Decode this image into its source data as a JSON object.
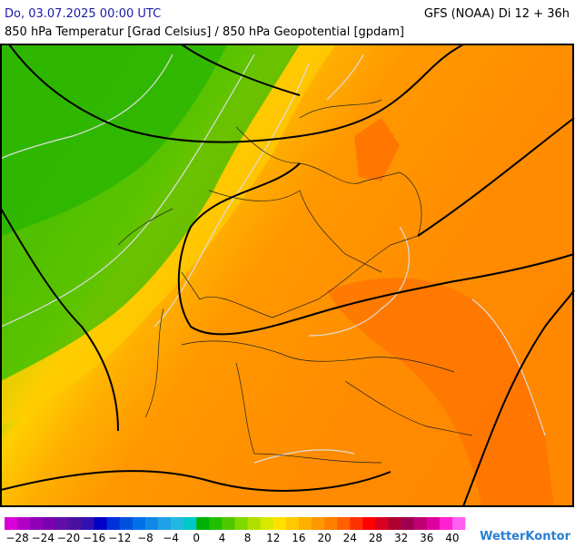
{
  "header": {
    "left": "Do, 03.07.2025 00:00 UTC",
    "right": "GFS (NOAA) Di 12 + 36h",
    "subtitle": "850 hPa Temperatur [Grad Celsius] / 850 hPa Geopotential [gpdam]"
  },
  "colorbar": {
    "range": [
      -30,
      42
    ],
    "colors": [
      "#d800d8",
      "#b000c8",
      "#9000b8",
      "#7a00b0",
      "#6010a8",
      "#4a10a0",
      "#3010b0",
      "#0000c8",
      "#0030d8",
      "#0050e0",
      "#0070e8",
      "#1088e8",
      "#20a0e8",
      "#20b8e0",
      "#00c8c8",
      "#00b000",
      "#20c000",
      "#50c800",
      "#80d800",
      "#b0e000",
      "#d8e800",
      "#ffe000",
      "#ffc800",
      "#ffb000",
      "#ff9800",
      "#ff8000",
      "#ff6000",
      "#ff3000",
      "#ff0000",
      "#d80020",
      "#b00030",
      "#a00050",
      "#c00070",
      "#e000a0",
      "#ff20d0",
      "#ff60f0"
    ],
    "ticks": [
      {
        "value": -28,
        "label": "−28"
      },
      {
        "value": -24,
        "label": "−24"
      },
      {
        "value": -20,
        "label": "−20"
      },
      {
        "value": -16,
        "label": "−16"
      },
      {
        "value": -12,
        "label": "−12"
      },
      {
        "value": -8,
        "label": "−8"
      },
      {
        "value": -4,
        "label": "−4"
      },
      0,
      4,
      8,
      12,
      16,
      20,
      24,
      28,
      32,
      36,
      40
    ]
  },
  "logo": "WetterKontor"
}
